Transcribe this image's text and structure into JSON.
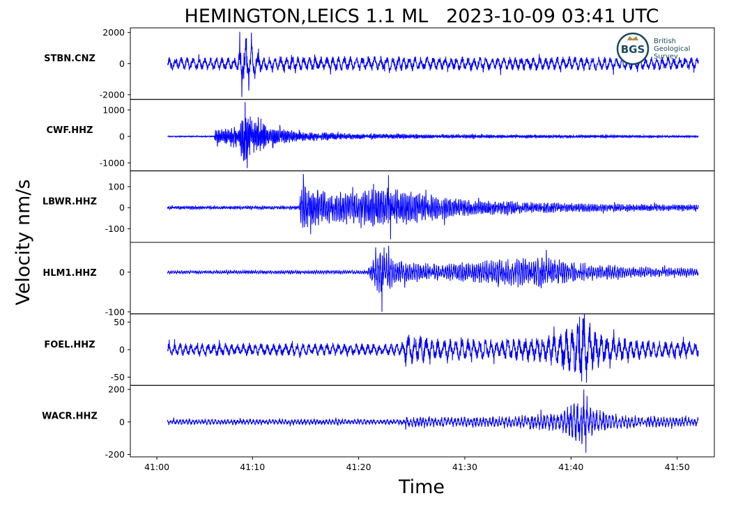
{
  "chart_data": {
    "type": "line",
    "title": "HEMINGTON,LEICS 1.1 ML   2023-10-09 03:41 UTC",
    "xlabel": "Time",
    "ylabel": "Velocity nm/s",
    "x_unit": "seconds after 03:41:00 UTC",
    "xlim": [
      -1.5,
      53.5
    ],
    "x_ticks": [
      1,
      10,
      20,
      30,
      40,
      50
    ],
    "x_tick_labels": [
      "41:00",
      "41:10",
      "41:20",
      "41:30",
      "41:40",
      "41:50"
    ],
    "line_color": "#0000ff",
    "grid": false,
    "legend": "none",
    "trace_start": 2,
    "trace_end": 52,
    "logo": {
      "text": "BGS",
      "lines": [
        "British",
        "Geological",
        "Survey"
      ]
    },
    "panels": [
      {
        "station": "STBN.CNZ",
        "ylim": [
          -2300,
          2300
        ],
        "y_ticks": [
          2000,
          0,
          -2000
        ],
        "y_tick_labels": [
          "2000",
          "0",
          "-2000"
        ],
        "noise_amplitude": 420,
        "envelope": [
          [
            2,
            450
          ],
          [
            8.5,
            450
          ],
          [
            9.0,
            1300
          ],
          [
            9.5,
            2100
          ],
          [
            10.0,
            1200
          ],
          [
            11,
            500
          ],
          [
            52,
            450
          ]
        ],
        "peaks": [
          {
            "x": 8.8,
            "y": 2050
          },
          {
            "x": 9.0,
            "y": -2150
          },
          {
            "x": 9.9,
            "y": 2000
          }
        ],
        "noise_period": 0.55
      },
      {
        "station": "CWF.HHZ",
        "ylim": [
          -1300,
          1400
        ],
        "y_ticks": [
          1000,
          0,
          -1000
        ],
        "y_tick_labels": [
          "1000",
          "0",
          "-1000"
        ],
        "noise_amplitude": 25,
        "envelope": [
          [
            2,
            25
          ],
          [
            6.4,
            25
          ],
          [
            6.6,
            450
          ],
          [
            7.0,
            300
          ],
          [
            8.8,
            500
          ],
          [
            9.2,
            1200
          ],
          [
            10.0,
            700
          ],
          [
            12,
            350
          ],
          [
            15,
            180
          ],
          [
            20,
            110
          ],
          [
            30,
            70
          ],
          [
            52,
            40
          ]
        ],
        "peaks": [
          {
            "x": 9.3,
            "y": 1300
          },
          {
            "x": 9.5,
            "y": -1200
          }
        ],
        "noise_period": 0.12
      },
      {
        "station": "LBWR.HHZ",
        "ylim": [
          -165,
          175
        ],
        "y_ticks": [
          100,
          0,
          -100
        ],
        "y_tick_labels": [
          "100",
          "0",
          "-100"
        ],
        "noise_amplitude": 7,
        "envelope": [
          [
            2,
            8
          ],
          [
            14.4,
            9
          ],
          [
            14.6,
            120
          ],
          [
            16,
            90
          ],
          [
            18,
            75
          ],
          [
            22.5,
            100
          ],
          [
            25,
            80
          ],
          [
            30,
            40
          ],
          [
            40,
            22
          ],
          [
            52,
            14
          ]
        ],
        "peaks": [
          {
            "x": 14.8,
            "y": 160
          },
          {
            "x": 22.8,
            "y": 155
          },
          {
            "x": 23.0,
            "y": -150
          }
        ],
        "noise_period": 0.16
      },
      {
        "station": "HLM1.HHZ",
        "ylim": [
          -105,
          75
        ],
        "y_ticks": [
          0,
          -100
        ],
        "y_tick_labels": [
          "0",
          "-100"
        ],
        "noise_amplitude": 4,
        "envelope": [
          [
            2,
            4
          ],
          [
            20.8,
            5
          ],
          [
            21.3,
            35
          ],
          [
            22.2,
            65
          ],
          [
            23.5,
            30
          ],
          [
            28,
            22
          ],
          [
            34,
            35
          ],
          [
            37,
            40
          ],
          [
            40,
            28
          ],
          [
            46,
            14
          ],
          [
            52,
            10
          ]
        ],
        "peaks": [
          {
            "x": 22.2,
            "y": -100
          },
          {
            "x": 22.4,
            "y": 62
          }
        ],
        "noise_period": 0.2
      },
      {
        "station": "FOEL.HHZ",
        "ylim": [
          -65,
          65
        ],
        "y_ticks": [
          50,
          0,
          -50
        ],
        "y_tick_labels": [
          "50",
          "0",
          "-50"
        ],
        "noise_amplitude": 12,
        "envelope": [
          [
            2,
            12
          ],
          [
            24,
            12
          ],
          [
            24.6,
            30
          ],
          [
            27,
            22
          ],
          [
            34,
            20
          ],
          [
            38,
            28
          ],
          [
            41,
            55
          ],
          [
            43,
            28
          ],
          [
            47,
            18
          ],
          [
            52,
            15
          ]
        ],
        "peaks": [
          {
            "x": 40.8,
            "y": 60
          },
          {
            "x": 41.0,
            "y": -58
          }
        ],
        "noise_period": 0.55
      },
      {
        "station": "WACR.HHZ",
        "ylim": [
          -215,
          225
        ],
        "y_ticks": [
          200,
          0,
          -200
        ],
        "y_tick_labels": [
          "200",
          "0",
          "-200"
        ],
        "noise_amplitude": 18,
        "envelope": [
          [
            2,
            18
          ],
          [
            24.3,
            18
          ],
          [
            24.5,
            45
          ],
          [
            26,
            30
          ],
          [
            33,
            35
          ],
          [
            39,
            60
          ],
          [
            40.5,
            140
          ],
          [
            42,
            90
          ],
          [
            44,
            45
          ],
          [
            52,
            30
          ]
        ],
        "peaks": [
          {
            "x": 41.2,
            "y": 200
          },
          {
            "x": 41.4,
            "y": -190
          }
        ],
        "noise_period": 0.3
      }
    ]
  }
}
